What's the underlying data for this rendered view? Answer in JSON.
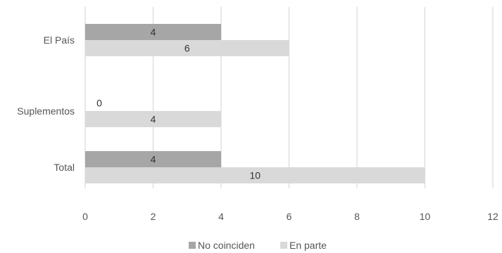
{
  "chart_data": {
    "type": "bar",
    "orientation": "horizontal",
    "categories": [
      "El País",
      "Suplementos",
      "Total"
    ],
    "series": [
      {
        "name": "No coinciden",
        "values": [
          4,
          0,
          4
        ],
        "color": "#a6a6a6"
      },
      {
        "name": "En parte",
        "values": [
          6,
          4,
          10
        ],
        "color": "#d9d9d9"
      }
    ],
    "x_ticks": [
      "0",
      "2",
      "4",
      "6",
      "8",
      "10",
      "12"
    ],
    "xlim": [
      0,
      12
    ],
    "grid": true,
    "legend_position": "bottom",
    "data_labels": true,
    "gridline_color": "#d9d9d9"
  }
}
